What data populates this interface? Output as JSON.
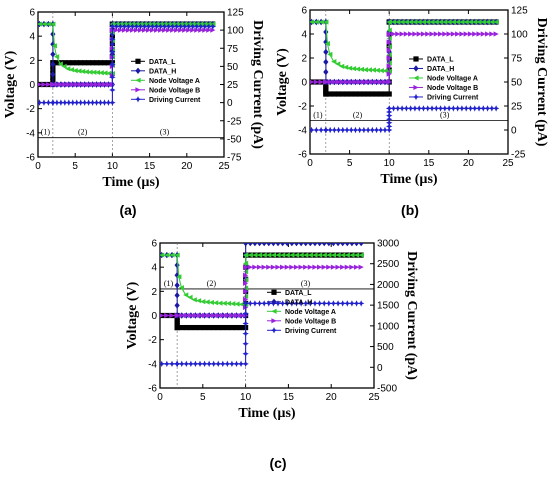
{
  "chart_data": [
    {
      "panel": "(a)",
      "type": "line",
      "xlabel": "Time (µs)",
      "ylabel": "Voltage (V)",
      "y2label": "Driving Current (pA)",
      "xlim": [
        0,
        25
      ],
      "ylim": [
        -6,
        6
      ],
      "y2lim": [
        -75,
        125
      ],
      "xticks": [
        "0",
        "5",
        "10",
        "15",
        "20",
        "25"
      ],
      "yticks": [
        "-6",
        "-4",
        "-2",
        "0",
        "2",
        "4",
        "6"
      ],
      "y2ticks": [
        "-75",
        "-50",
        "-25",
        "0",
        "25",
        "50",
        "75",
        "100",
        "125"
      ],
      "phases": [
        "(1)",
        "(2)",
        "(3)"
      ],
      "legend_position": "center-right",
      "series": [
        {
          "name": "DATA_L",
          "color": "#000000",
          "marker": "square",
          "x": [
            0.2,
            2,
            2.01,
            10,
            10.01,
            23.5
          ],
          "y": [
            0,
            0,
            1.8,
            1.8,
            5,
            5
          ]
        },
        {
          "name": "DATA_H",
          "color": "#1a1aa6",
          "marker": "diamond",
          "x": [
            0.2,
            2,
            2.01,
            10,
            10.01,
            23.5
          ],
          "y": [
            5,
            5,
            0,
            0,
            5,
            5
          ]
        },
        {
          "name": "Node Voltage A",
          "color": "#33cc33",
          "marker": "triangle-left",
          "x": [
            0.2,
            2,
            2.2,
            2.5,
            3,
            4,
            5,
            6,
            7,
            8,
            9,
            10,
            10.01,
            23.5
          ],
          "y": [
            5,
            5,
            3.2,
            2.3,
            1.7,
            1.3,
            1.15,
            1.08,
            1.02,
            1.0,
            0.95,
            0.9,
            5,
            5
          ]
        },
        {
          "name": "Node Voltage B",
          "color": "#9922dd",
          "marker": "triangle-right",
          "x": [
            0.2,
            2,
            2.01,
            10,
            10.01,
            23.5
          ],
          "y": [
            0,
            0,
            0,
            0,
            4.5,
            4.5
          ]
        },
        {
          "name": "Driving Current",
          "color": "#2222cc",
          "marker": "star",
          "x": [
            0.2,
            2,
            2.01,
            10,
            10.01,
            23.5
          ],
          "y": [
            -1.5,
            -1.5,
            -1.5,
            -1.5,
            4.8,
            4.8
          ]
        }
      ]
    },
    {
      "panel": "(b)",
      "type": "line",
      "xlabel": "Time (µs)",
      "ylabel": "Voltage (V)",
      "y2label": "Driving Current (pA)",
      "xlim": [
        0,
        25
      ],
      "ylim": [
        -6,
        6
      ],
      "y2lim": [
        -25,
        125
      ],
      "xticks": [
        "0",
        "5",
        "10",
        "15",
        "20",
        "25"
      ],
      "yticks": [
        "-6",
        "-4",
        "-2",
        "0",
        "2",
        "4",
        "6"
      ],
      "y2ticks": [
        "-25",
        "0",
        "25",
        "50",
        "75",
        "100",
        "125"
      ],
      "phases": [
        "(1)",
        "(2)",
        "(3)"
      ],
      "legend_position": "center-right",
      "series": [
        {
          "name": "DATA_L",
          "color": "#000000",
          "marker": "square",
          "x": [
            0.2,
            2,
            2.01,
            10,
            10.01,
            23.5
          ],
          "y": [
            0,
            0,
            -1,
            -1,
            5,
            5
          ]
        },
        {
          "name": "DATA_H",
          "color": "#1a1aa6",
          "marker": "diamond",
          "x": [
            0.2,
            2,
            2.01,
            10,
            10.01,
            23.5
          ],
          "y": [
            5,
            5,
            0,
            0,
            5,
            5
          ]
        },
        {
          "name": "Node Voltage A",
          "color": "#33cc33",
          "marker": "triangle-left",
          "x": [
            0.2,
            2,
            2.2,
            2.5,
            3,
            4,
            5,
            6,
            7,
            8,
            9,
            10,
            10.01,
            23.5
          ],
          "y": [
            5,
            5,
            3.2,
            2.3,
            1.7,
            1.3,
            1.15,
            1.08,
            1.02,
            1.0,
            0.95,
            0.9,
            5,
            5
          ]
        },
        {
          "name": "Node Voltage B",
          "color": "#9922dd",
          "marker": "triangle-right",
          "x": [
            0.2,
            2,
            2.01,
            10,
            10.01,
            23.5
          ],
          "y": [
            0,
            0,
            0,
            0,
            4,
            4
          ]
        },
        {
          "name": "Driving Current",
          "color": "#2222cc",
          "marker": "star",
          "x": [
            0.2,
            2,
            2.01,
            10,
            10.01,
            23.5
          ],
          "y": [
            -4,
            -4,
            -4,
            -4,
            -2.2,
            -2.2
          ]
        }
      ]
    },
    {
      "panel": "(c)",
      "type": "line",
      "xlabel": "Time (µs)",
      "ylabel": "Voltage (V)",
      "y2label": "Driving Current (pA)",
      "xlim": [
        0,
        25
      ],
      "ylim": [
        -6,
        6
      ],
      "y2lim": [
        -500,
        3000
      ],
      "xticks": [
        "0",
        "5",
        "10",
        "15",
        "20",
        "25"
      ],
      "yticks": [
        "-6",
        "-4",
        "-2",
        "0",
        "2",
        "4",
        "6"
      ],
      "y2ticks": [
        "-500",
        "0",
        "500",
        "1000",
        "1500",
        "2000",
        "2500",
        "3000"
      ],
      "phases": [
        "(1)",
        "(2)",
        "(3)"
      ],
      "legend_position": "center-right",
      "series": [
        {
          "name": "DATA_L",
          "color": "#000000",
          "marker": "square",
          "x": [
            0.2,
            2,
            2.01,
            10,
            10.01,
            23.5
          ],
          "y": [
            0,
            0,
            -1,
            -1,
            5,
            5
          ]
        },
        {
          "name": "DATA_H",
          "color": "#1a1aa6",
          "marker": "diamond",
          "x": [
            0.2,
            2,
            2.01,
            10,
            10.01,
            23.5
          ],
          "y": [
            5,
            5,
            0,
            0,
            6,
            6
          ]
        },
        {
          "name": "Node Voltage A",
          "color": "#33cc33",
          "marker": "triangle-left",
          "x": [
            0.2,
            2,
            2.2,
            2.5,
            3,
            4,
            5,
            6,
            7,
            8,
            9,
            10,
            10.01,
            23.5
          ],
          "y": [
            5,
            5,
            3.2,
            2.3,
            1.7,
            1.3,
            1.15,
            1.08,
            1.02,
            1.0,
            0.95,
            0.9,
            5,
            5
          ]
        },
        {
          "name": "Node Voltage B",
          "color": "#9922dd",
          "marker": "triangle-right",
          "x": [
            0.2,
            2,
            2.01,
            10,
            10.01,
            23.5
          ],
          "y": [
            0,
            0,
            0,
            0,
            4,
            4
          ]
        },
        {
          "name": "Driving Current",
          "color": "#2222cc",
          "marker": "star",
          "x": [
            0.2,
            2,
            2.01,
            10,
            10.01,
            23.5
          ],
          "y": [
            -4,
            -4,
            -4,
            -4,
            1,
            1
          ]
        }
      ]
    }
  ]
}
